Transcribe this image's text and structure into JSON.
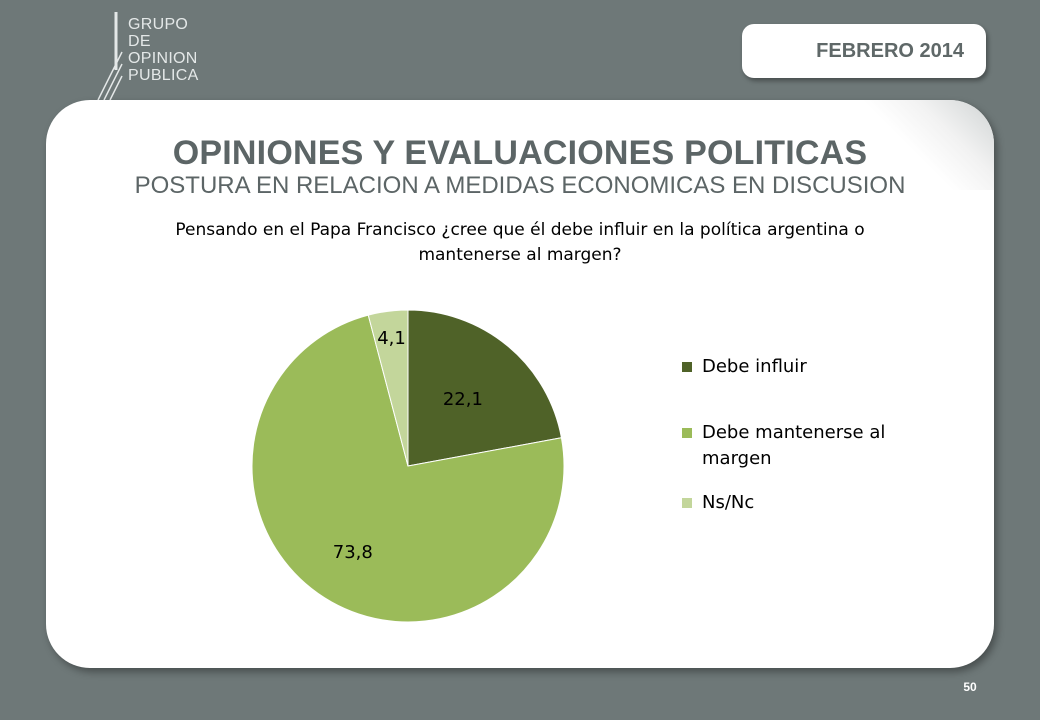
{
  "logo": {
    "lines": [
      "GRUPO",
      "DE",
      "OPINION",
      "PUBLICA"
    ]
  },
  "header": {
    "date": "FEBRERO 2014",
    "title": "OPINIONES Y EVALUACIONES POLITICAS",
    "subtitle": "POSTURA EN RELACION A MEDIDAS ECONOMICAS EN DISCUSION"
  },
  "chart_data": {
    "type": "pie",
    "title": "Pensando en el Papa Francisco ¿cree que él debe influir en la política argentina o mantenerse al margen?",
    "categories": [
      "Debe influir",
      "Debe mantenerse al margen",
      "Ns/Nc"
    ],
    "values": [
      22.1,
      73.8,
      4.1
    ],
    "value_labels": [
      "22,1",
      "73,8",
      "4,1"
    ],
    "colors": [
      "#4f6228",
      "#9bbb59",
      "#c3d69b"
    ],
    "start_angle_deg": 0,
    "direction": "clockwise",
    "legend_position": "right"
  },
  "footer": {
    "page_number": "50"
  }
}
